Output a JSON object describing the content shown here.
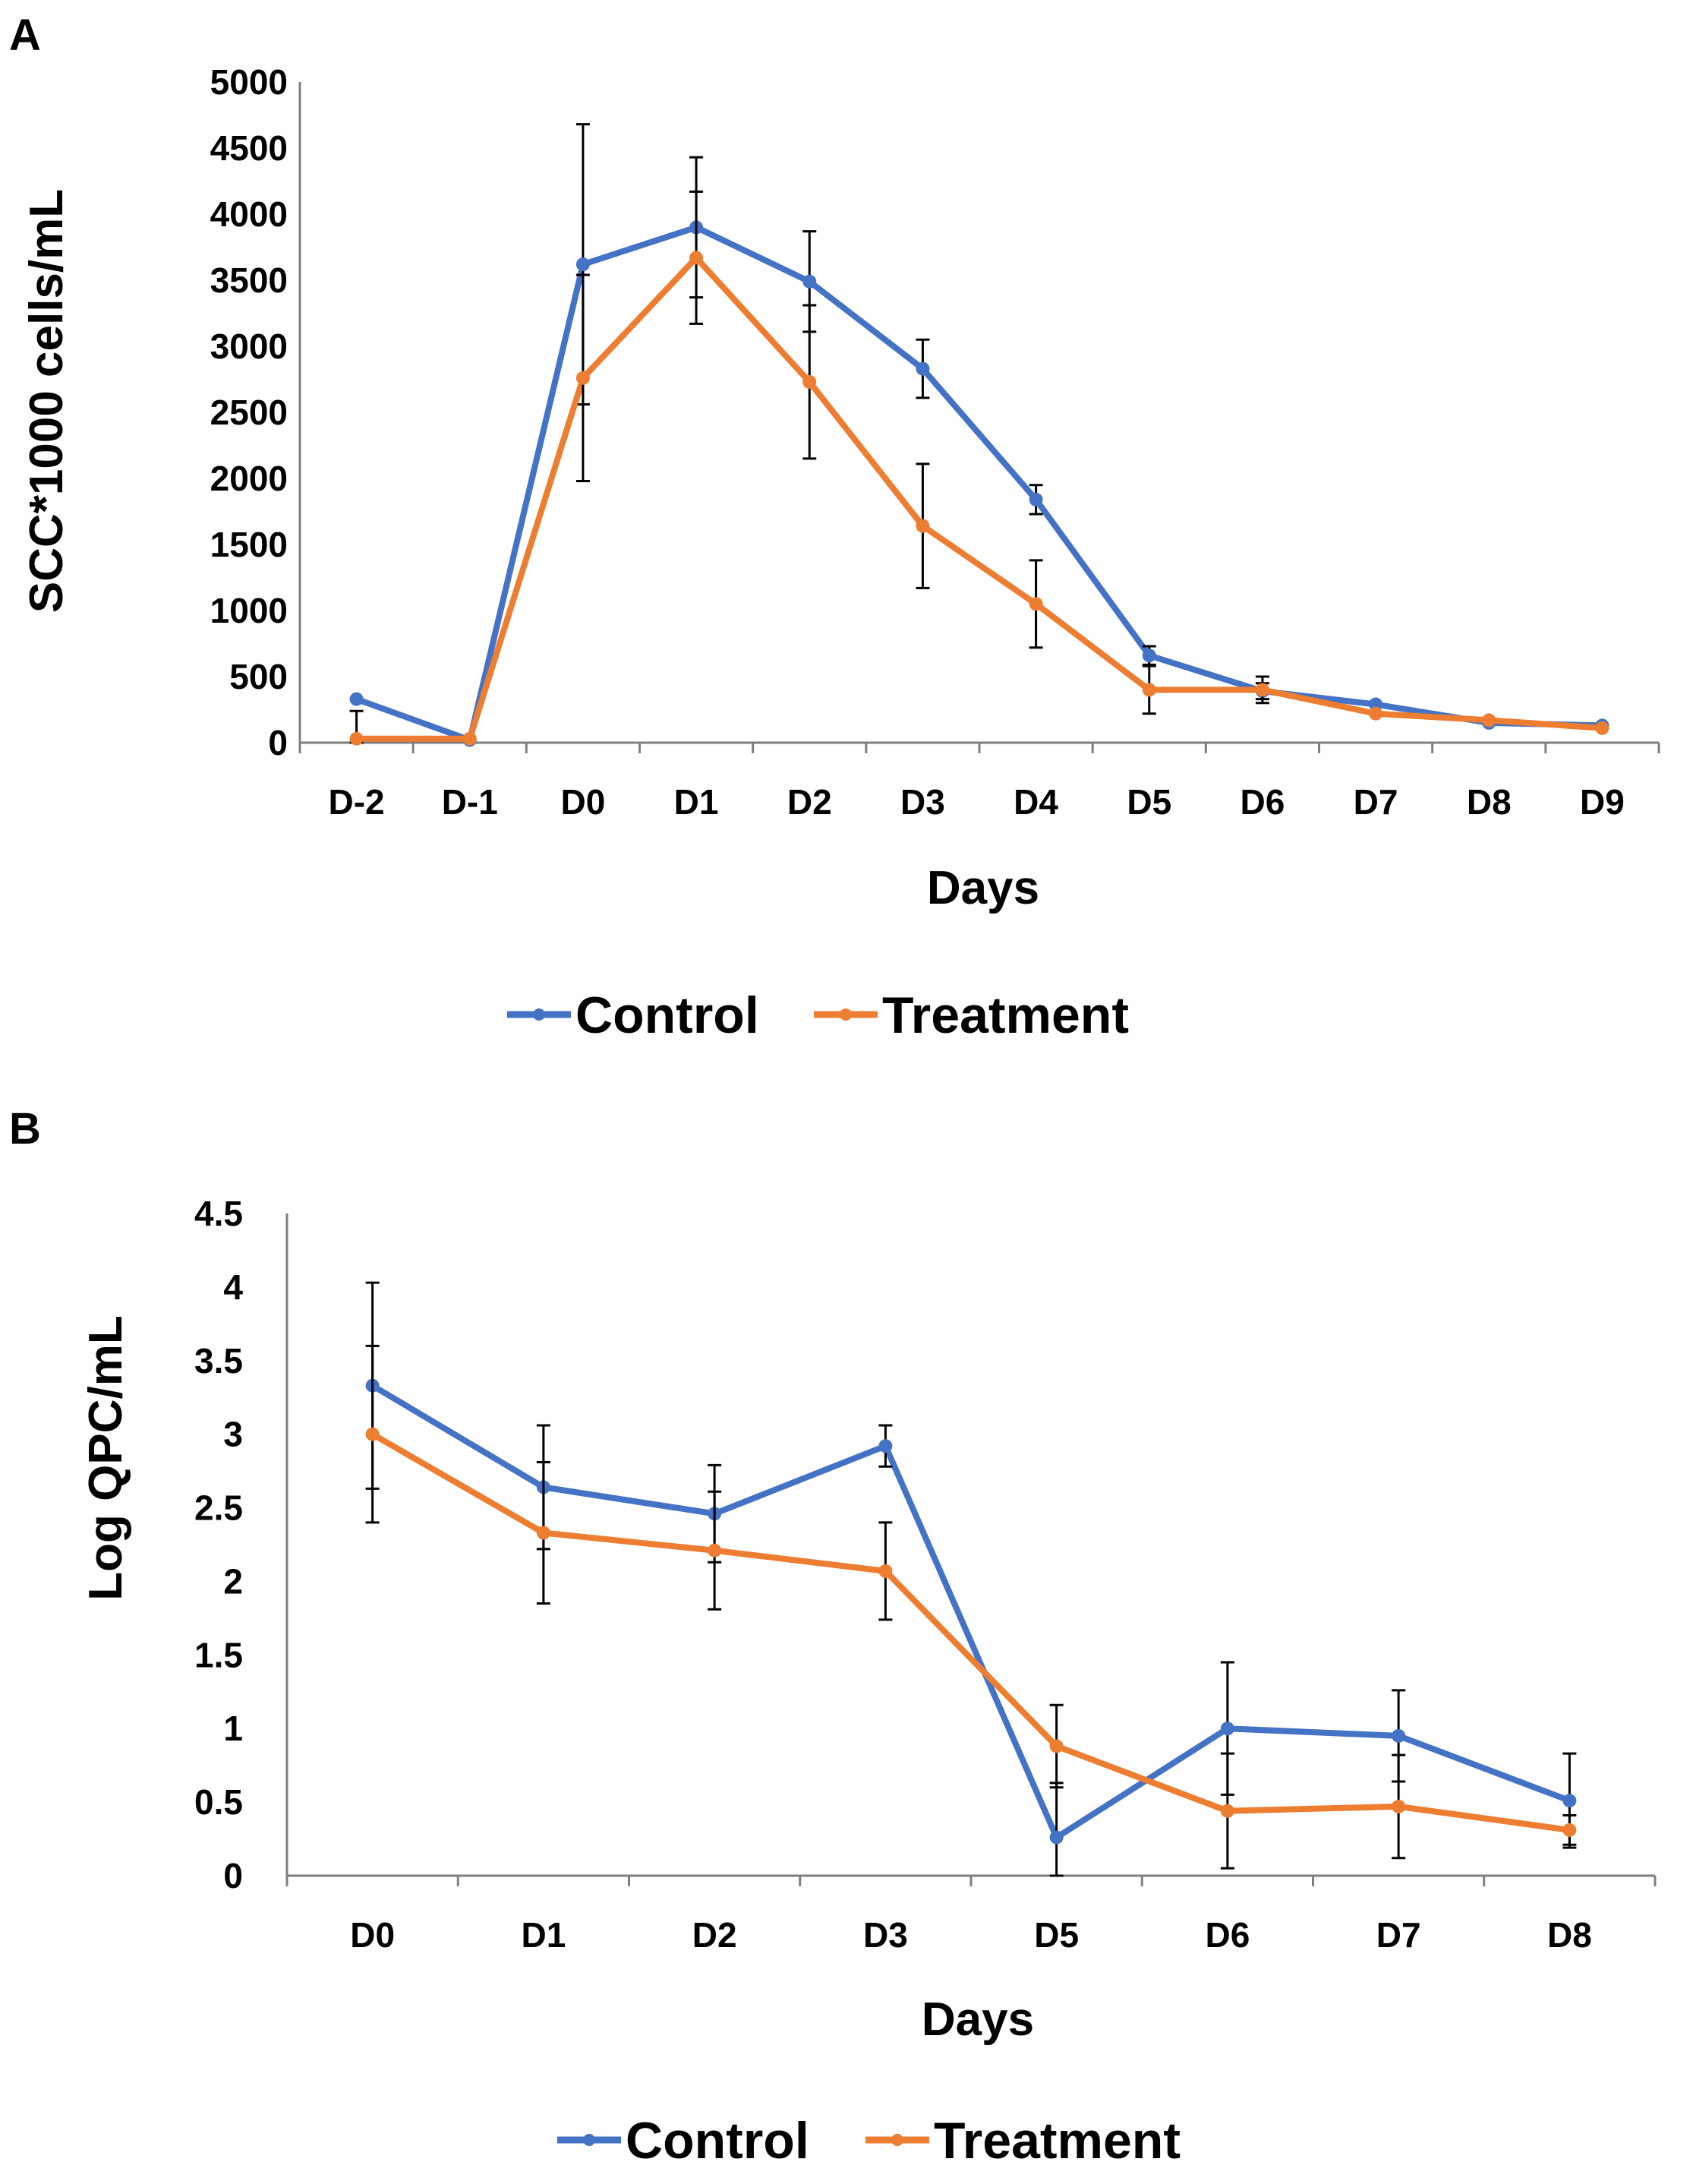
{
  "chart_data": [
    {
      "type": "line",
      "panel": "A",
      "title": "",
      "xlabel": "Days",
      "ylabel": "SCC*1000 cells/mL",
      "categories": [
        "D-2",
        "D-1",
        "D0",
        "D1",
        "D2",
        "D3",
        "D4",
        "D5",
        "D6",
        "D7",
        "D8",
        "D9"
      ],
      "ylim": [
        0,
        5000
      ],
      "yticks": [
        "0",
        "500",
        "1000",
        "1500",
        "2000",
        "2500",
        "3000",
        "3500",
        "4000",
        "4500",
        "5000"
      ],
      "grid": false,
      "legend_position": "bottom",
      "series": [
        {
          "name": "Control",
          "color": "#4472C4",
          "values": [
            330,
            20,
            3620,
            3900,
            3490,
            2830,
            1840,
            660,
            390,
            290,
            150,
            130
          ],
          "errors": [
            0,
            0,
            1060,
            530,
            380,
            220,
            110,
            70,
            60,
            0,
            0,
            0
          ]
        },
        {
          "name": "Treatment",
          "color": "#ED7D31",
          "values": [
            30,
            30,
            2760,
            3670,
            2730,
            1640,
            1050,
            400,
            400,
            220,
            170,
            110
          ],
          "errors": [
            210,
            0,
            780,
            500,
            580,
            470,
            330,
            180,
            100,
            0,
            0,
            0
          ]
        }
      ]
    },
    {
      "type": "line",
      "panel": "B",
      "title": "",
      "xlabel": "Days",
      "ylabel": "Log QPC/mL",
      "categories": [
        "D0",
        "D1",
        "D2",
        "D3",
        "D5",
        "D6",
        "D7",
        "D8"
      ],
      "ylim": [
        0,
        4.5
      ],
      "yticks": [
        "0",
        "0.5",
        "1",
        "1.5",
        "2",
        "2.5",
        "3",
        "3.5",
        "4",
        "4.5"
      ],
      "grid": false,
      "legend_position": "bottom",
      "series": [
        {
          "name": "Control",
          "color": "#4472C4",
          "values": [
            3.33,
            2.64,
            2.46,
            2.92,
            0.26,
            1.0,
            0.95,
            0.51
          ],
          "errors": [
            0.7,
            0.42,
            0.33,
            0.14,
            0.37,
            0.45,
            0.31,
            0.32
          ]
        },
        {
          "name": "Treatment",
          "color": "#ED7D31",
          "values": [
            3.0,
            2.33,
            2.21,
            2.07,
            0.88,
            0.44,
            0.47,
            0.31
          ],
          "errors": [
            0.6,
            0.48,
            0.4,
            0.33,
            0.28,
            0.39,
            0.35,
            0.1
          ]
        }
      ]
    }
  ]
}
